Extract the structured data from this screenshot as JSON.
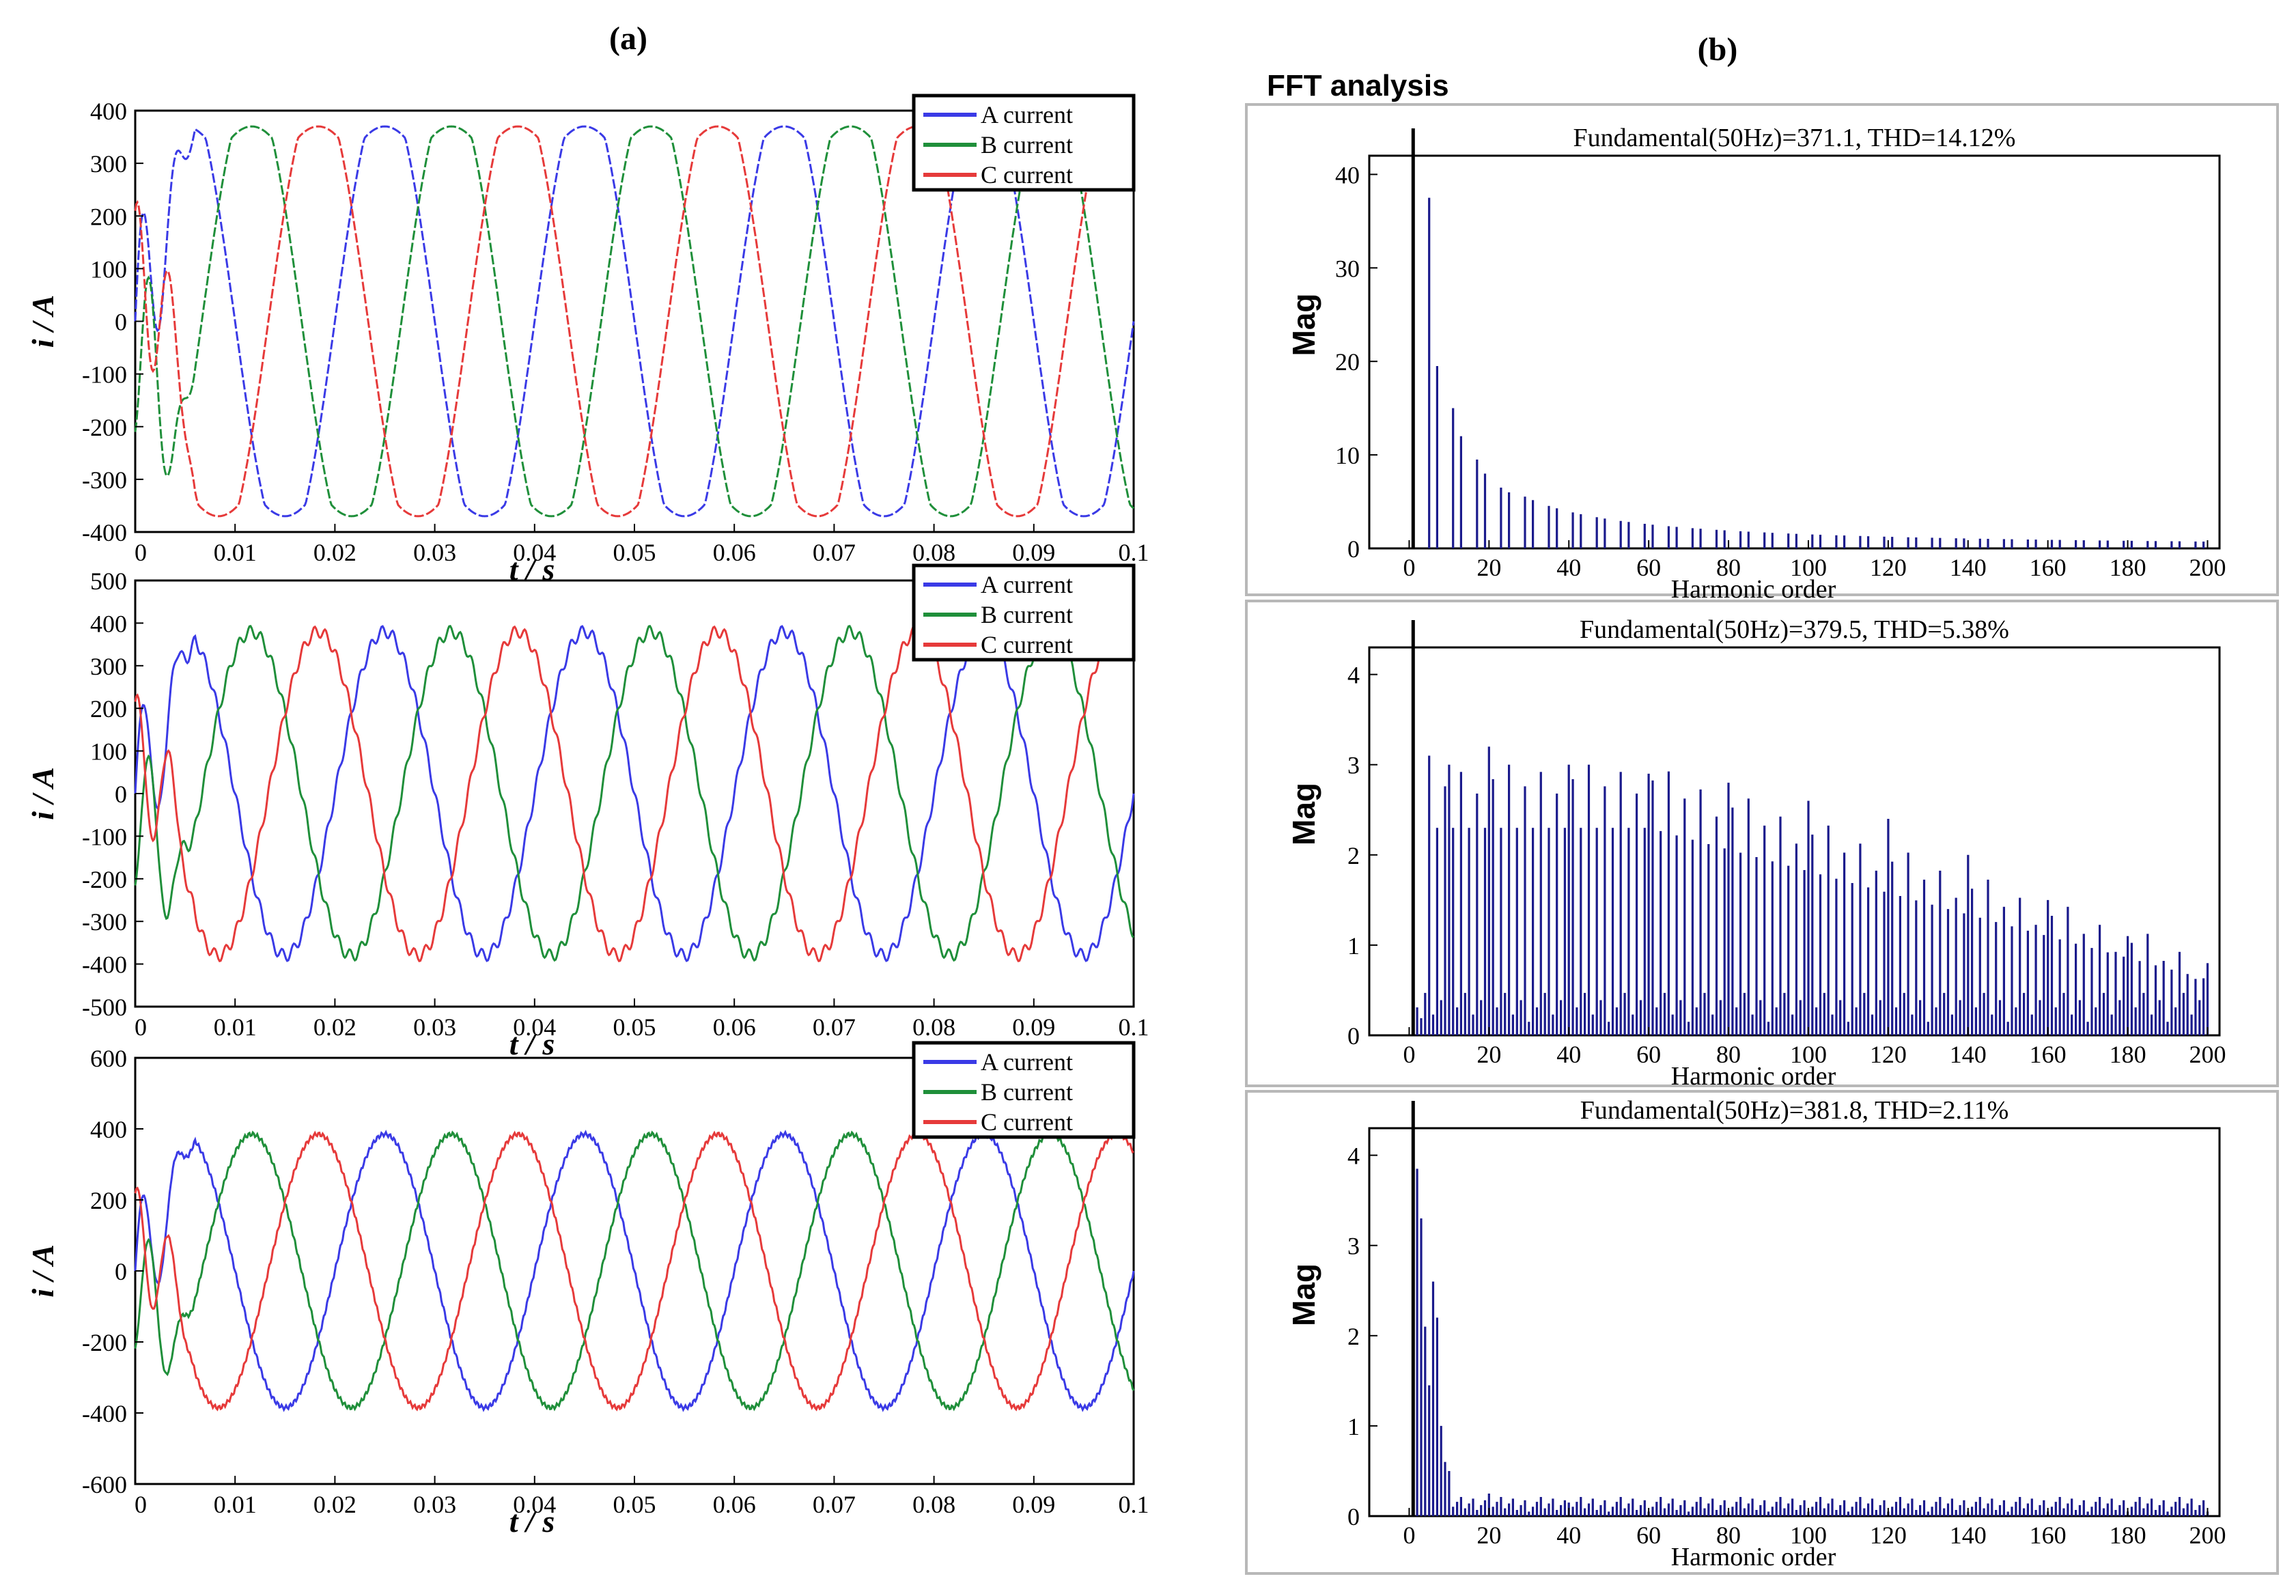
{
  "panel_labels": {
    "a": "(a)",
    "b": "(b)"
  },
  "fft_header": "FFT analysis",
  "colors": {
    "a": "#3a3ae6",
    "b": "#1f8f3a",
    "c": "#e63a3a",
    "bar": "#1a1a8c",
    "fund": "#000000",
    "axis": "#000000"
  },
  "chart_data": [
    {
      "type": "line",
      "id": "current1",
      "xlabel": "t / s",
      "ylabel": "i / A",
      "xlim": [
        0,
        0.1
      ],
      "ylim": [
        -400,
        400
      ],
      "xticks": [
        0,
        0.01,
        0.02,
        0.03,
        0.04,
        0.05,
        0.06,
        0.07,
        0.08,
        0.09,
        0.1
      ],
      "xtick_labels": [
        "0",
        "0.01",
        "0.02",
        "0.03",
        "0.04",
        "0.05",
        "0.06",
        "0.07",
        "0.08",
        "0.09",
        "0.1"
      ],
      "yticks": [
        -400,
        -300,
        -200,
        -100,
        0,
        100,
        200,
        300,
        400
      ],
      "ytick_labels": [
        "-400",
        "-300",
        "-200",
        "-100",
        "0",
        "100",
        "200",
        "300",
        "400"
      ],
      "legend": [
        "A current",
        "B current",
        "C current"
      ],
      "legend_position": "top-right",
      "series": [
        {
          "name": "A current",
          "frequency_hz": 50,
          "amplitude": 370,
          "phase_deg": 0,
          "shape": "six-step"
        },
        {
          "name": "B current",
          "frequency_hz": 50,
          "amplitude": 370,
          "phase_deg": -120,
          "shape": "six-step"
        },
        {
          "name": "C current",
          "frequency_hz": 50,
          "amplitude": 370,
          "phase_deg": 120,
          "shape": "six-step"
        }
      ]
    },
    {
      "type": "line",
      "id": "current2",
      "xlabel": "t / s",
      "ylabel": "i / A",
      "xlim": [
        0,
        0.1
      ],
      "ylim": [
        -500,
        500
      ],
      "xticks": [
        0,
        0.01,
        0.02,
        0.03,
        0.04,
        0.05,
        0.06,
        0.07,
        0.08,
        0.09,
        0.1
      ],
      "xtick_labels": [
        "0",
        "0.01",
        "0.02",
        "0.03",
        "0.04",
        "0.05",
        "0.06",
        "0.07",
        "0.08",
        "0.09",
        "0.1"
      ],
      "yticks": [
        -500,
        -400,
        -300,
        -200,
        -100,
        0,
        100,
        200,
        300,
        400,
        500
      ],
      "ytick_labels": [
        "-500",
        "-400",
        "-300",
        "-200",
        "-100",
        "0",
        "100",
        "200",
        "300",
        "400",
        "500"
      ],
      "legend": [
        "A current",
        "B current",
        "C current"
      ],
      "legend_position": "top-right",
      "series": [
        {
          "name": "A current",
          "frequency_hz": 50,
          "amplitude": 380,
          "phase_deg": 0,
          "shape": "sine-with-spikes"
        },
        {
          "name": "B current",
          "frequency_hz": 50,
          "amplitude": 380,
          "phase_deg": -120,
          "shape": "sine-with-spikes"
        },
        {
          "name": "C current",
          "frequency_hz": 50,
          "amplitude": 380,
          "phase_deg": 120,
          "shape": "sine-with-spikes"
        }
      ]
    },
    {
      "type": "line",
      "id": "current3",
      "xlabel": "t / s",
      "ylabel": "i / A",
      "xlim": [
        0,
        0.1
      ],
      "ylim": [
        -600,
        600
      ],
      "xticks": [
        0,
        0.01,
        0.02,
        0.03,
        0.04,
        0.05,
        0.06,
        0.07,
        0.08,
        0.09,
        0.1
      ],
      "xtick_labels": [
        "0",
        "0.01",
        "0.02",
        "0.03",
        "0.04",
        "0.05",
        "0.06",
        "0.07",
        "0.08",
        "0.09",
        "0.1"
      ],
      "yticks": [
        -600,
        -400,
        -200,
        0,
        200,
        400,
        600
      ],
      "ytick_labels": [
        "-600",
        "-400",
        "-200",
        "0",
        "200",
        "400",
        "600"
      ],
      "legend": [
        "A current",
        "B current",
        "C current"
      ],
      "legend_position": "top-right",
      "series": [
        {
          "name": "A current",
          "frequency_hz": 50,
          "amplitude": 385,
          "phase_deg": 0,
          "shape": "sine"
        },
        {
          "name": "B current",
          "frequency_hz": 50,
          "amplitude": 385,
          "phase_deg": -120,
          "shape": "sine"
        },
        {
          "name": "C current",
          "frequency_hz": 50,
          "amplitude": 385,
          "phase_deg": 120,
          "shape": "sine"
        }
      ]
    },
    {
      "type": "bar",
      "id": "fft1",
      "title": "Fundamental(50Hz)=371.1, THD=14.12%",
      "xlabel": "Harmonic order",
      "ylabel": "Mag",
      "xlim": [
        -10,
        203
      ],
      "ylim": [
        0,
        42
      ],
      "xticks": [
        0,
        20,
        40,
        60,
        80,
        100,
        120,
        140,
        160,
        180,
        200
      ],
      "xtick_labels": [
        "0",
        "20",
        "40",
        "60",
        "80",
        "100",
        "120",
        "140",
        "160",
        "180",
        "200"
      ],
      "yticks": [
        0,
        10,
        20,
        30,
        40
      ],
      "ytick_labels": [
        "0",
        "10",
        "20",
        "30",
        "40"
      ],
      "fundamental": {
        "order": 1,
        "value": 100
      },
      "spectrum": "six-step",
      "harmonics": {
        "orders": [
          5,
          7,
          11,
          13,
          17,
          19,
          23,
          25
        ],
        "values": [
          37.5,
          19.5,
          15,
          12,
          9.5,
          8,
          6.5,
          6
        ]
      }
    },
    {
      "type": "bar",
      "id": "fft2",
      "title": "Fundamental(50Hz)=379.5, THD=5.38%",
      "xlabel": "Harmonic order",
      "ylabel": "Mag",
      "xlim": [
        -10,
        203
      ],
      "ylim": [
        0,
        4.3
      ],
      "xticks": [
        0,
        20,
        40,
        60,
        80,
        100,
        120,
        140,
        160,
        180,
        200
      ],
      "xtick_labels": [
        "0",
        "20",
        "40",
        "60",
        "80",
        "100",
        "120",
        "140",
        "160",
        "180",
        "200"
      ],
      "yticks": [
        0,
        1,
        2,
        3,
        4
      ],
      "ytick_labels": [
        "0",
        "1",
        "2",
        "3",
        "4"
      ],
      "fundamental": {
        "order": 1,
        "value": 100
      },
      "spectrum": "pwm-sidebands",
      "harmonics": {
        "orders": [
          5,
          10,
          20,
          40,
          60,
          80,
          100,
          120,
          140,
          160,
          180,
          200
        ],
        "values": [
          3.1,
          3.0,
          3.2,
          3.0,
          2.9,
          2.8,
          2.6,
          2.4,
          2.0,
          1.5,
          1.1,
          0.8
        ]
      }
    },
    {
      "type": "bar",
      "id": "fft3",
      "title": "Fundamental(50Hz)=381.8, THD=2.11%",
      "xlabel": "Harmonic order",
      "ylabel": "Mag",
      "xlim": [
        -10,
        203
      ],
      "ylim": [
        0,
        4.3
      ],
      "xticks": [
        0,
        20,
        40,
        60,
        80,
        100,
        120,
        140,
        160,
        180,
        200
      ],
      "xtick_labels": [
        "0",
        "20",
        "40",
        "60",
        "80",
        "100",
        "120",
        "140",
        "160",
        "180",
        "200"
      ],
      "yticks": [
        0,
        1,
        2,
        3,
        4
      ],
      "ytick_labels": [
        "0",
        "1",
        "2",
        "3",
        "4"
      ],
      "fundamental": {
        "order": 1,
        "value": 100
      },
      "spectrum": "low-order",
      "harmonics": {
        "orders": [
          2,
          3,
          4,
          5,
          6,
          7,
          8,
          9,
          10,
          20,
          40
        ],
        "values": [
          3.85,
          3.3,
          2.1,
          1.45,
          2.6,
          2.2,
          1.0,
          0.6,
          0.5,
          0.25,
          0.15
        ]
      }
    }
  ]
}
